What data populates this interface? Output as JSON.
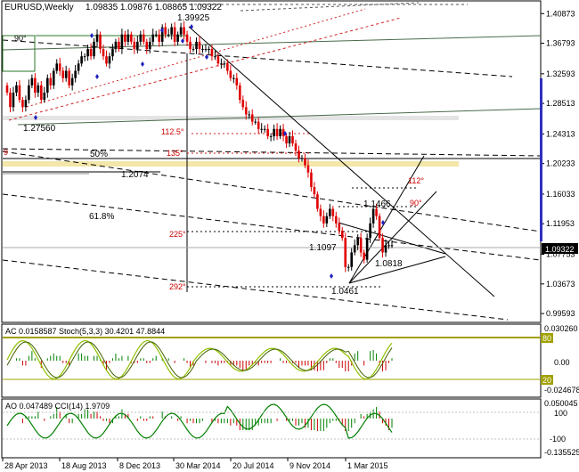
{
  "header": {
    "symbol_timeframe": "EURUSD,Weekly",
    "ohlc": "1.09835 1.09876 1.08865 1.09322"
  },
  "colors": {
    "bull_candle": "#000000",
    "bear_candle": "#e00000",
    "fib_zone": "#f2e6a8",
    "price_tag_bg": "#000000",
    "price_tag_fg": "#ffffff",
    "ac_line": "#000000",
    "ac_hist_up": "#008000",
    "ac_hist_down": "#cc0000",
    "stoch_main": "#90c000",
    "stoch_signal": "#006000",
    "cci_line": "#008000",
    "level_line": "#a0a000",
    "scrollbar": "#3030c0"
  },
  "chart_data": [
    {
      "type": "candlestick",
      "title": "EURUSD,Weekly",
      "ohlc_header": "1.09835 1.09876 1.08865 1.09322",
      "current_price": "1.09322",
      "ylim": [
        0.985,
        1.425
      ],
      "y_ticks": [
        "1.40873",
        "1.36793",
        "1.32593",
        "1.28513",
        "1.24313",
        "1.20233",
        "1.16033",
        "1.11953",
        "1.07753",
        "1.03673",
        "0.99593"
      ],
      "x_ticks": [
        "28 Apr 2013",
        "18 Aug 2013",
        "8 Dec 2013",
        "30 Mar 2014",
        "20 Jul 2014",
        "9 Nov 2014",
        "1 Mar 2015"
      ],
      "series": {
        "close": [
          1.3,
          1.28,
          1.3,
          1.31,
          1.29,
          1.28,
          1.29,
          1.31,
          1.32,
          1.3,
          1.31,
          1.29,
          1.3,
          1.32,
          1.31,
          1.33,
          1.34,
          1.33,
          1.32,
          1.33,
          1.31,
          1.32,
          1.33,
          1.34,
          1.35,
          1.35,
          1.36,
          1.35,
          1.37,
          1.38,
          1.36,
          1.35,
          1.34,
          1.35,
          1.36,
          1.37,
          1.36,
          1.38,
          1.37,
          1.38,
          1.37,
          1.36,
          1.37,
          1.38,
          1.37,
          1.36,
          1.37,
          1.38,
          1.38,
          1.37,
          1.39,
          1.38,
          1.38,
          1.39,
          1.37,
          1.38,
          1.39,
          1.38,
          1.37,
          1.36,
          1.36,
          1.37,
          1.36,
          1.36,
          1.36,
          1.36,
          1.35,
          1.35,
          1.34,
          1.34,
          1.34,
          1.33,
          1.32,
          1.32,
          1.31,
          1.29,
          1.28,
          1.27,
          1.27,
          1.26,
          1.26,
          1.25,
          1.25,
          1.25,
          1.24,
          1.24,
          1.25,
          1.24,
          1.25,
          1.24,
          1.23,
          1.24,
          1.23,
          1.22,
          1.21,
          1.21,
          1.2,
          1.19,
          1.17,
          1.16,
          1.14,
          1.13,
          1.12,
          1.13,
          1.14,
          1.13,
          1.12,
          1.11,
          1.1,
          1.06,
          1.06,
          1.08,
          1.09,
          1.1,
          1.08,
          1.07,
          1.1,
          1.12,
          1.14,
          1.13,
          1.1,
          1.08,
          1.09,
          1.09,
          1.09
        ]
      },
      "annotations": {
        "price_labels": [
          "1.39925",
          "1.27560",
          "1.2074",
          "1.1466",
          "1.1097",
          "1.0818",
          "1.0461"
        ],
        "fib_labels": [
          "50%",
          "61.8%"
        ],
        "angle_labels": [
          "90°",
          "112.5°",
          "135°",
          "225°",
          "292°",
          "112°",
          "90°",
          "9"
        ]
      }
    },
    {
      "type": "line",
      "name": "AC / Stochastic",
      "header": "AC 0.0158587  Stoch(5,3,3) 30.4201 47.8844",
      "ylim": [
        -0.03,
        0.035
      ],
      "y_ticks": [
        "0.030260",
        "0.00",
        "-0.024678"
      ],
      "levels": [
        "80",
        "20"
      ]
    },
    {
      "type": "line",
      "name": "AO / CCI",
      "header": "AO 0.047489  CCI(14) 1.9709",
      "ylim": [
        -0.14,
        0.06
      ],
      "y_ticks": [
        "0.050045",
        "100",
        "-100",
        "-0.135525"
      ]
    }
  ]
}
